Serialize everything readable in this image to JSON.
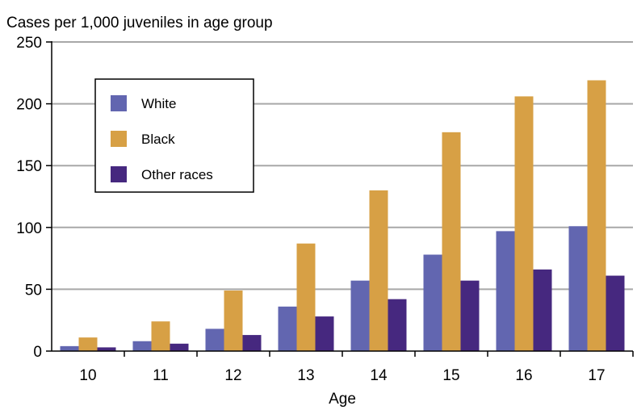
{
  "chart_data": {
    "type": "bar",
    "title": "Cases per 1,000 juveniles in age group",
    "xlabel": "Age",
    "ylabel": "",
    "ylim": [
      0,
      250
    ],
    "yticks": [
      0,
      50,
      100,
      150,
      200,
      250
    ],
    "grid": true,
    "legend_position": "top-left",
    "categories": [
      "10",
      "11",
      "12",
      "13",
      "14",
      "15",
      "16",
      "17"
    ],
    "series": [
      {
        "name": "White",
        "color": "#6266b0",
        "values": [
          4,
          8,
          18,
          36,
          57,
          78,
          97,
          101
        ]
      },
      {
        "name": "Black",
        "color": "#d7a045",
        "values": [
          11,
          24,
          49,
          87,
          130,
          177,
          206,
          219
        ]
      },
      {
        "name": "Other races",
        "color": "#46287f",
        "values": [
          3,
          6,
          13,
          28,
          42,
          57,
          66,
          61
        ]
      }
    ]
  }
}
